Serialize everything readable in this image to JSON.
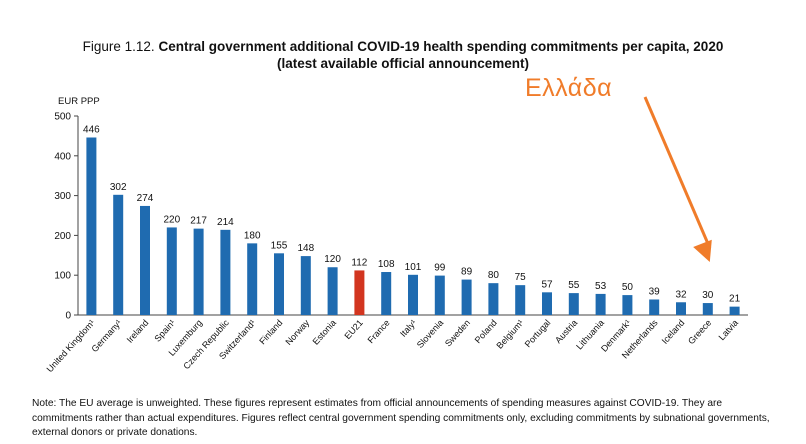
{
  "title": {
    "figure": "Figure 1.12.",
    "main": "Central government additional COVID-19 health spending commitments per capita, 2020",
    "sub": "(latest available official announcement)"
  },
  "annotation": {
    "text": "Ελλάδα",
    "color": "#f07c2a",
    "points_to": "Greece"
  },
  "note": "Note: The EU average is unweighted. These figures represent estimates from official announcements of spending measures against COVID-19. They are commitments rather than actual expenditures. Figures reflect central government spending commitments only, excluding commitments by subnational governments, external donors or private donations.",
  "colors": {
    "bar": "#1f6bb0",
    "highlight": "#d2351f",
    "arrow": "#f07c2a"
  },
  "chart_data": {
    "type": "bar",
    "ylabel": "EUR PPP",
    "ylim": [
      0,
      500
    ],
    "yticks": [
      0,
      100,
      200,
      300,
      400,
      500
    ],
    "grid": false,
    "highlight": "EU21",
    "categories": [
      "United Kingdom¹",
      "Germany¹",
      "Ireland",
      "Spain¹",
      "Luxemburg",
      "Czech Republic",
      "Switzerland¹",
      "Finland",
      "Norway",
      "Estonia",
      "EU21",
      "France",
      "Italy¹",
      "Slovenia",
      "Sweden",
      "Poland",
      "Belgium¹",
      "Portugal",
      "Austria",
      "Lithuania",
      "Denmark¹",
      "Netherlands",
      "Iceland",
      "Greece",
      "Latvia"
    ],
    "values": [
      446,
      302,
      274,
      220,
      217,
      214,
      180,
      155,
      148,
      120,
      112,
      108,
      101,
      99,
      89,
      80,
      75,
      57,
      55,
      53,
      50,
      39,
      32,
      30,
      21
    ]
  }
}
